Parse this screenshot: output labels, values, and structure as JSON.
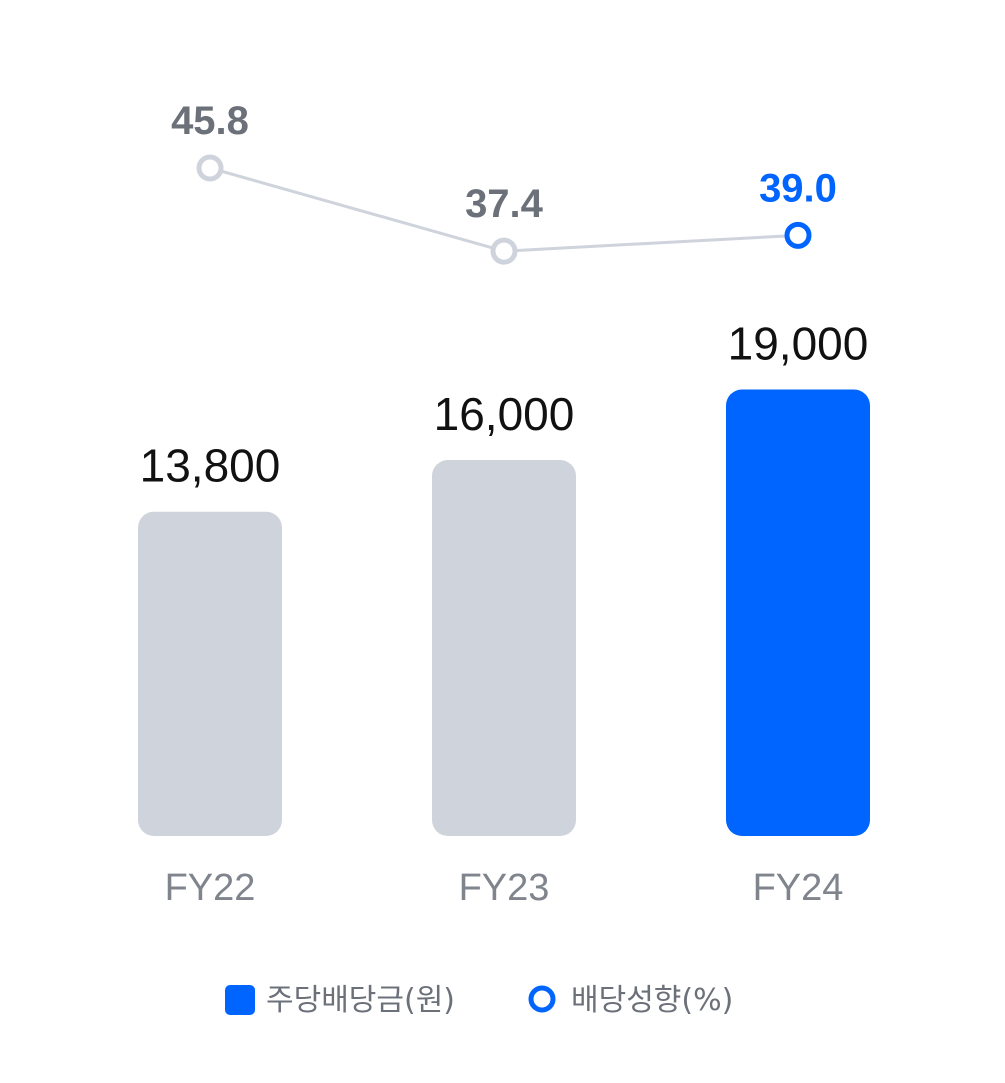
{
  "chart_data": {
    "type": "bar",
    "categories": [
      "FY22",
      "FY23",
      "FY24"
    ],
    "series": [
      {
        "name": "주당배당금(원)",
        "type": "bar",
        "values": [
          13800,
          16000,
          19000
        ],
        "labels": [
          "13,800",
          "16,000",
          "19,000"
        ]
      },
      {
        "name": "배당성향(%)",
        "type": "line",
        "values": [
          45.8,
          37.4,
          39.0
        ],
        "labels": [
          "45.8",
          "37.4",
          "39.0"
        ]
      }
    ],
    "legend_position": "bottom-center",
    "grid": false,
    "colors": {
      "highlight": "#0065ff",
      "muted_bar": "#cfd3dc",
      "muted_line": "#cfd3dc",
      "muted_text": "#6b7079",
      "category_text": "#7f848d",
      "value_text": "#111111"
    }
  }
}
